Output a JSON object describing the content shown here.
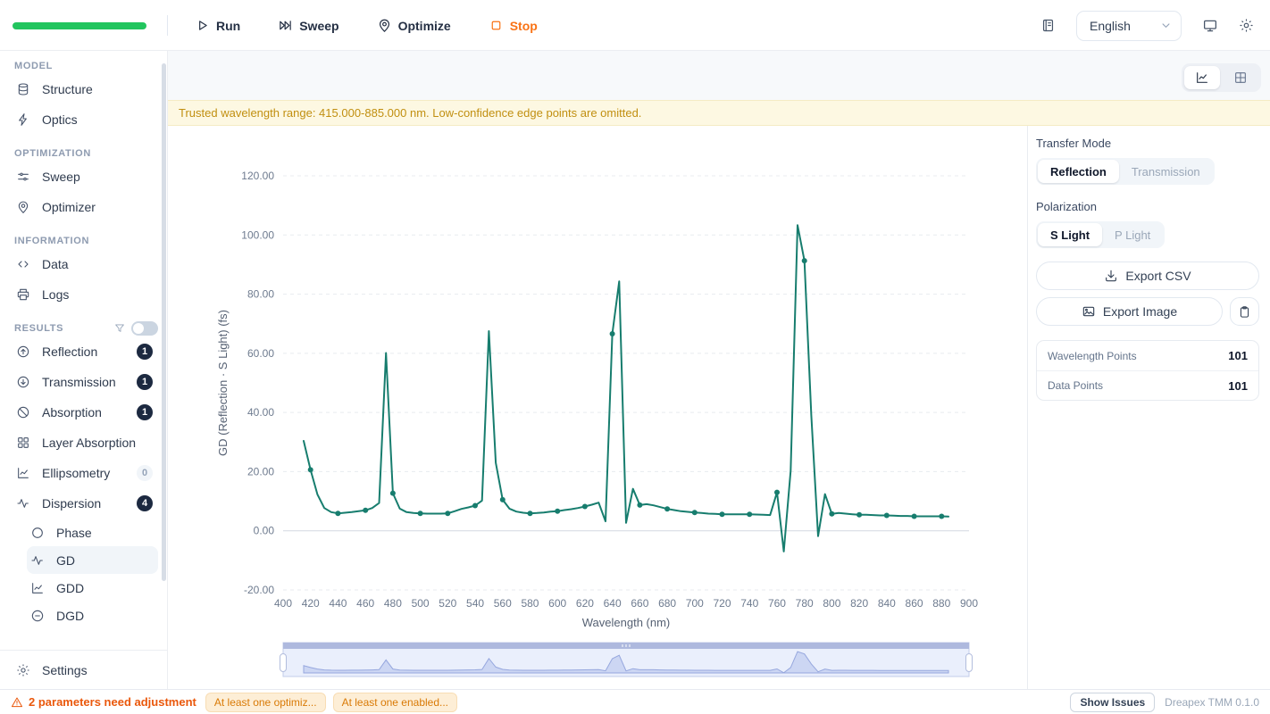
{
  "header": {
    "progress_color": "#22c55e",
    "actions": [
      {
        "label": "Run",
        "icon": "play"
      },
      {
        "label": "Sweep",
        "icon": "fast-forward"
      },
      {
        "label": "Optimize",
        "icon": "pin"
      },
      {
        "label": "Stop",
        "icon": "stop",
        "accent": true
      }
    ],
    "language": {
      "value": "English"
    }
  },
  "sidebar": {
    "sections": [
      {
        "label": "MODEL",
        "items": [
          {
            "label": "Structure",
            "icon": "database"
          },
          {
            "label": "Optics",
            "icon": "bolt"
          }
        ]
      },
      {
        "label": "OPTIMIZATION",
        "items": [
          {
            "label": "Sweep",
            "icon": "sliders"
          },
          {
            "label": "Optimizer",
            "icon": "pin"
          }
        ]
      },
      {
        "label": "INFORMATION",
        "items": [
          {
            "label": "Data",
            "icon": "code"
          },
          {
            "label": "Logs",
            "icon": "printer"
          }
        ]
      },
      {
        "label": "RESULTS",
        "has_filter": true,
        "has_toggle": true,
        "items": [
          {
            "label": "Reflection",
            "icon": "arrow-up-circle",
            "badge": "1",
            "badge_style": "dark"
          },
          {
            "label": "Transmission",
            "icon": "arrow-down-circle",
            "badge": "1",
            "badge_style": "dark"
          },
          {
            "label": "Absorption",
            "icon": "ban",
            "badge": "1",
            "badge_style": "dark"
          },
          {
            "label": "Layer Absorption",
            "icon": "grid"
          },
          {
            "label": "Ellipsometry",
            "icon": "chart",
            "badge": "0",
            "badge_style": "light"
          },
          {
            "label": "Dispersion",
            "icon": "wave",
            "badge": "4",
            "badge_style": "dark"
          },
          {
            "label": "Phase",
            "icon": "circle",
            "indent": true
          },
          {
            "label": "GD",
            "icon": "wave",
            "indent": true,
            "selected": true
          },
          {
            "label": "GDD",
            "icon": "chart",
            "indent": true
          },
          {
            "label": "DGD",
            "icon": "minus-circle",
            "indent": true
          }
        ]
      }
    ],
    "footer_item": {
      "label": "Settings",
      "icon": "gear"
    }
  },
  "banner": {
    "text": "Trusted wavelength range: 415.000-885.000 nm. Low-confidence edge points are omitted."
  },
  "right_panel": {
    "transfer_mode": {
      "label": "Transfer Mode",
      "options": [
        "Reflection",
        "Transmission"
      ],
      "selected": "Reflection"
    },
    "polarization": {
      "label": "Polarization",
      "options": [
        "S Light",
        "P Light"
      ],
      "selected": "S Light"
    },
    "export_csv_label": "Export CSV",
    "export_image_label": "Export Image",
    "stats": [
      {
        "label": "Wavelength Points",
        "value": "101"
      },
      {
        "label": "Data Points",
        "value": "101"
      }
    ]
  },
  "status_bar": {
    "warning": "2 parameters need adjustment",
    "pills": [
      "At least one optimiz...",
      "At least one enabled..."
    ],
    "show_issues_label": "Show Issues",
    "version": "Dreapex TMM 0.1.0"
  },
  "chart_data": {
    "type": "line",
    "xlabel": "Wavelength (nm)",
    "ylabel": "GD (Reflection · S Light) (fs)",
    "xlim": [
      400,
      900
    ],
    "ylim": [
      -20,
      120
    ],
    "x_ticks": [
      400,
      420,
      440,
      460,
      480,
      500,
      520,
      540,
      560,
      580,
      600,
      620,
      640,
      660,
      680,
      700,
      720,
      740,
      760,
      780,
      800,
      820,
      840,
      860,
      880,
      900
    ],
    "y_ticks": [
      -20,
      0,
      20,
      40,
      60,
      80,
      100,
      120
    ],
    "y_tick_labels": [
      "-20.00",
      "0.00",
      "20.00",
      "40.00",
      "60.00",
      "80.00",
      "100.00",
      "120.00"
    ],
    "grid": true,
    "line_color": "#177d6e",
    "marker_step_nm": 20,
    "x": [
      415,
      420,
      425,
      430,
      435,
      440,
      445,
      450,
      455,
      460,
      465,
      470,
      475,
      480,
      485,
      490,
      495,
      500,
      505,
      510,
      515,
      520,
      525,
      530,
      535,
      540,
      545,
      550,
      555,
      560,
      565,
      570,
      575,
      580,
      585,
      590,
      595,
      600,
      605,
      610,
      615,
      620,
      625,
      630,
      635,
      640,
      645,
      650,
      655,
      660,
      665,
      670,
      675,
      680,
      685,
      690,
      695,
      700,
      705,
      710,
      715,
      720,
      725,
      730,
      735,
      740,
      745,
      750,
      755,
      760,
      765,
      770,
      775,
      780,
      785,
      790,
      795,
      800,
      805,
      810,
      815,
      820,
      825,
      830,
      835,
      840,
      845,
      850,
      855,
      860,
      865,
      870,
      875,
      880,
      885
    ],
    "y": [
      30.4,
      20.6,
      12.3,
      7.7,
      6.3,
      5.9,
      6.1,
      6.3,
      6.6,
      6.9,
      7.7,
      9.4,
      60.1,
      12.7,
      7.5,
      6.3,
      6.0,
      5.9,
      5.8,
      5.8,
      5.8,
      5.9,
      6.6,
      7.4,
      7.9,
      8.5,
      10.2,
      67.5,
      23.0,
      10.5,
      7.5,
      6.5,
      6.1,
      5.9,
      6.0,
      6.2,
      6.5,
      6.6,
      7.0,
      7.3,
      7.7,
      8.2,
      8.8,
      9.5,
      3.2,
      66.6,
      84.3,
      2.7,
      14.2,
      8.7,
      9.0,
      8.6,
      8.0,
      7.4,
      7.0,
      6.6,
      6.4,
      6.2,
      6.0,
      5.8,
      5.7,
      5.6,
      5.6,
      5.6,
      5.6,
      5.6,
      5.5,
      5.4,
      5.3,
      13.0,
      -7.0,
      20.3,
      103.3,
      91.3,
      39.0,
      -1.8,
      12.4,
      5.7,
      6.0,
      5.8,
      5.6,
      5.4,
      5.4,
      5.3,
      5.2,
      5.2,
      5.1,
      5.0,
      5.0,
      4.9,
      4.9,
      4.9,
      4.9,
      4.9,
      4.8
    ]
  }
}
